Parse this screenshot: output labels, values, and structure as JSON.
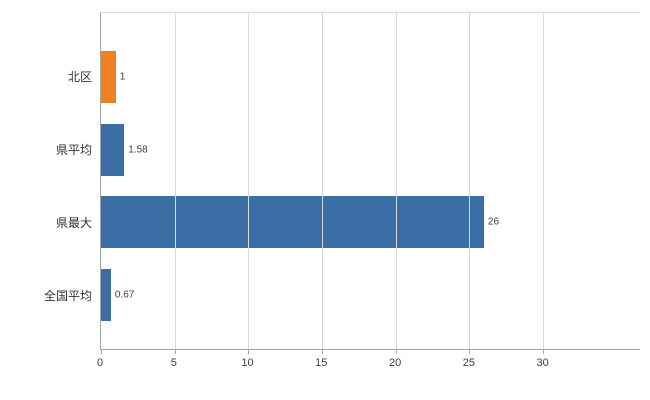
{
  "chart_data": {
    "type": "bar",
    "orientation": "horizontal",
    "title": "",
    "categories": [
      "北区",
      "県平均",
      "県最大",
      "全国平均"
    ],
    "values": [
      1,
      1.58,
      26,
      0.67
    ],
    "value_labels": [
      "1",
      "1.58",
      "26",
      "0.67"
    ],
    "series_colors": [
      "#EE8023",
      "#3A6EA5",
      "#3A6EA5",
      "#3A6EA5"
    ],
    "x_ticks": [
      0,
      5,
      10,
      15,
      20,
      25,
      30
    ],
    "x_tick_labels": [
      "0",
      "5",
      "10",
      "15",
      "20",
      "25",
      "30"
    ],
    "xlim": [
      0,
      36.6
    ],
    "grid": true,
    "legend": false,
    "colors": {
      "grid": "#D9D9D9",
      "frame": "#D9D9D9",
      "axis": "#A6A6A6",
      "background": "#FFFFFF",
      "bar_blue": "#3A6EA5",
      "bar_orange": "#EE8023",
      "tick_text": "#404040",
      "label_text": "#333333"
    }
  }
}
